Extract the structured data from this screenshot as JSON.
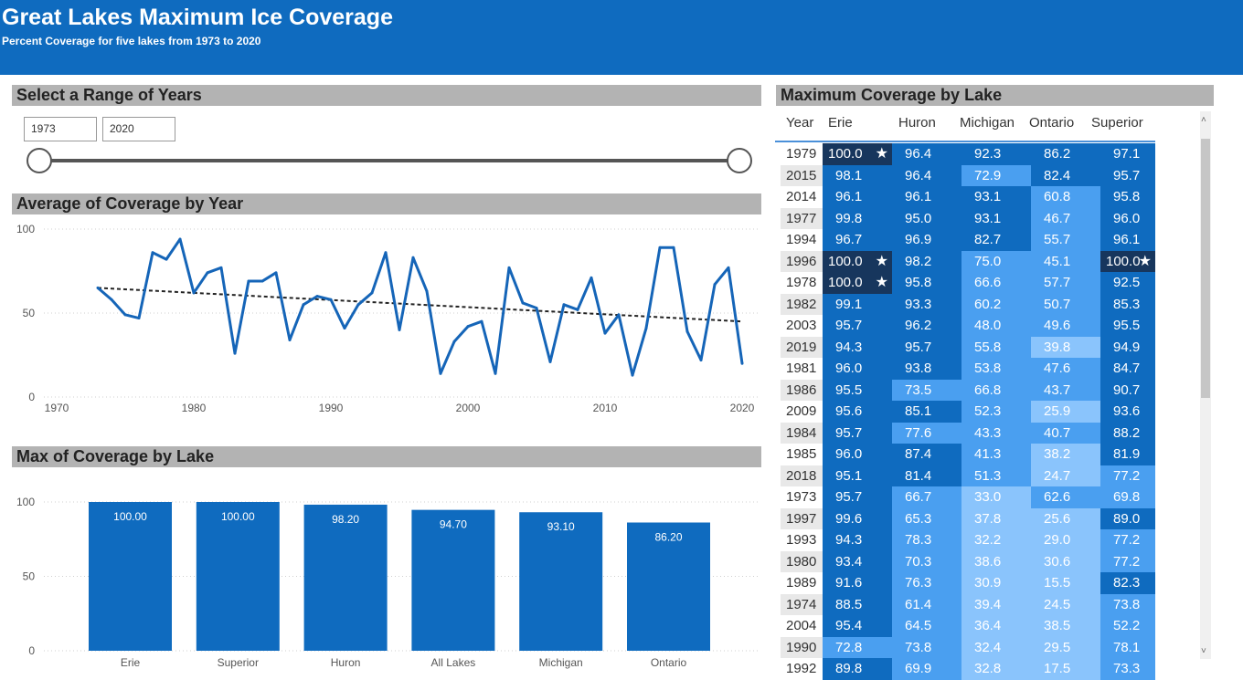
{
  "header": {
    "title": "Great Lakes Maximum Ice Coverage",
    "subtitle": "Percent Coverage for five lakes from 1973 to 2020"
  },
  "range_panel": {
    "title": "Select a Range of Years",
    "start_value": "1973",
    "end_value": "2020"
  },
  "line_panel": {
    "title": "Average of Coverage by Year"
  },
  "bar_panel": {
    "title": "Max of Coverage by Lake"
  },
  "table_panel": {
    "title": "Maximum Coverage by Lake",
    "columns": [
      "Year",
      "Erie",
      "Huron",
      "Michigan",
      "Ontario",
      "Superior"
    ],
    "rows": [
      [
        "1979",
        "100.0",
        "96.4",
        "92.3",
        "86.2",
        "97.1"
      ],
      [
        "2015",
        "98.1",
        "96.4",
        "72.9",
        "82.4",
        "95.7"
      ],
      [
        "2014",
        "96.1",
        "96.1",
        "93.1",
        "60.8",
        "95.8"
      ],
      [
        "1977",
        "99.8",
        "95.0",
        "93.1",
        "46.7",
        "96.0"
      ],
      [
        "1994",
        "96.7",
        "96.9",
        "82.7",
        "55.7",
        "96.1"
      ],
      [
        "1996",
        "100.0",
        "98.2",
        "75.0",
        "45.1",
        "100.0"
      ],
      [
        "1978",
        "100.0",
        "95.8",
        "66.6",
        "57.7",
        "92.5"
      ],
      [
        "1982",
        "99.1",
        "93.3",
        "60.2",
        "50.7",
        "85.3"
      ],
      [
        "2003",
        "95.7",
        "96.2",
        "48.0",
        "49.6",
        "95.5"
      ],
      [
        "2019",
        "94.3",
        "95.7",
        "55.8",
        "39.8",
        "94.9"
      ],
      [
        "1981",
        "96.0",
        "93.8",
        "53.8",
        "47.6",
        "84.7"
      ],
      [
        "1986",
        "95.5",
        "73.5",
        "66.8",
        "43.7",
        "90.7"
      ],
      [
        "2009",
        "95.6",
        "85.1",
        "52.3",
        "25.9",
        "93.6"
      ],
      [
        "1984",
        "95.7",
        "77.6",
        "43.3",
        "40.7",
        "88.2"
      ],
      [
        "1985",
        "96.0",
        "87.4",
        "41.3",
        "38.2",
        "81.9"
      ],
      [
        "2018",
        "95.1",
        "81.4",
        "51.3",
        "24.7",
        "77.2"
      ],
      [
        "1973",
        "95.7",
        "66.7",
        "33.0",
        "62.6",
        "69.8"
      ],
      [
        "1997",
        "99.6",
        "65.3",
        "37.8",
        "25.6",
        "89.0"
      ],
      [
        "1993",
        "94.3",
        "78.3",
        "32.2",
        "29.0",
        "77.2"
      ],
      [
        "1980",
        "93.4",
        "70.3",
        "38.6",
        "30.6",
        "77.2"
      ],
      [
        "1989",
        "91.6",
        "76.3",
        "30.9",
        "15.5",
        "82.3"
      ],
      [
        "1974",
        "88.5",
        "61.4",
        "39.4",
        "24.5",
        "73.8"
      ],
      [
        "2004",
        "95.4",
        "64.5",
        "36.4",
        "38.5",
        "52.2"
      ],
      [
        "1990",
        "72.8",
        "73.8",
        "32.4",
        "29.5",
        "78.1"
      ],
      [
        "1992",
        "89.8",
        "69.9",
        "32.8",
        "17.5",
        "73.3"
      ]
    ]
  },
  "colors": {
    "header": "#0f6bbf",
    "line": "#1565b8",
    "bar": "#0f6bbf",
    "trend": "#222222",
    "heat_max": "#17365d",
    "heat_high": "#0f6bbf",
    "heat_mid": "#4a9ff0",
    "heat_low": "#8ac4fc"
  },
  "chart_data": [
    {
      "type": "line",
      "title": "Average of Coverage by Year",
      "x_ticks": [
        "1970",
        "1980",
        "1990",
        "2000",
        "2010",
        "2020"
      ],
      "y_ticks": [
        "0",
        "50",
        "100"
      ],
      "xlim": [
        1970,
        2020
      ],
      "ylim": [
        0,
        100
      ],
      "grid": true,
      "trendline": {
        "from": [
          1973,
          65
        ],
        "to": [
          2020,
          45
        ]
      },
      "series": [
        {
          "x": [
            1973,
            1974,
            1975,
            1976,
            1977,
            1978,
            1979,
            1980,
            1981,
            1982,
            1983,
            1984,
            1985,
            1986,
            1987,
            1988,
            1989,
            1990,
            1991,
            1992,
            1993,
            1994,
            1995,
            1996,
            1997,
            1998,
            1999,
            2000,
            2001,
            2002,
            2003,
            2004,
            2005,
            2006,
            2007,
            2008,
            2009,
            2010,
            2011,
            2012,
            2013,
            2014,
            2015,
            2016,
            2017,
            2018,
            2019,
            2020
          ],
          "values": [
            65,
            58,
            49,
            47,
            86,
            82,
            94,
            62,
            74,
            77,
            26,
            69,
            69,
            74,
            34,
            55,
            60,
            58,
            41,
            55,
            62,
            86,
            40,
            83,
            63,
            14,
            33,
            42,
            45,
            14,
            77,
            56,
            53,
            21,
            55,
            52,
            71,
            38,
            49,
            13,
            41,
            89,
            89,
            39,
            22,
            67,
            77,
            20
          ]
        }
      ]
    },
    {
      "type": "bar",
      "title": "Max of Coverage by Lake",
      "categories": [
        "Erie",
        "Superior",
        "Huron",
        "All Lakes",
        "Michigan",
        "Ontario"
      ],
      "values": [
        100.0,
        100.0,
        98.2,
        94.7,
        93.1,
        86.2
      ],
      "labels": [
        "100.00",
        "100.00",
        "98.20",
        "94.70",
        "93.10",
        "86.20"
      ],
      "y_ticks": [
        "0",
        "50",
        "100"
      ],
      "ylim": [
        0,
        100
      ],
      "grid": true
    }
  ]
}
